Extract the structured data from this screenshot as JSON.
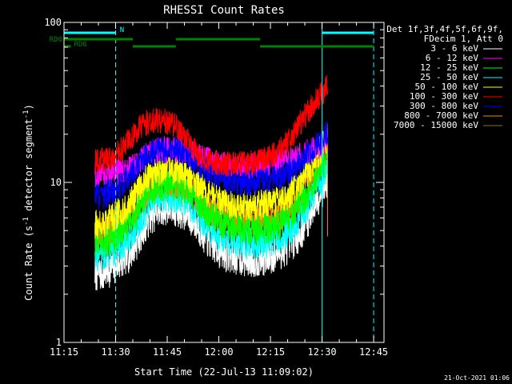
{
  "chart_data": {
    "type": "line",
    "title": "RHESSI Count Rates",
    "xlabel": "Start Time (22-Jul-13 11:09:02)",
    "ylabel_main": "Count Rate (s",
    "ylabel_sup1": "-1",
    "ylabel_mid": " detector segment",
    "ylabel_sup2": "-1",
    "ylabel_end": ")",
    "yscale": "log",
    "ylim": [
      1,
      100
    ],
    "xlim_minutes": [
      675.0,
      768.0
    ],
    "x_ticks": [
      {
        "m": 675,
        "label": "11:15"
      },
      {
        "m": 690,
        "label": "11:30"
      },
      {
        "m": 705,
        "label": "11:45"
      },
      {
        "m": 720,
        "label": "12:00"
      },
      {
        "m": 735,
        "label": "12:15"
      },
      {
        "m": 750,
        "label": "12:30"
      },
      {
        "m": 765,
        "label": "12:45"
      }
    ],
    "y_ticks": [
      {
        "v": 1,
        "label": "1"
      },
      {
        "v": 10,
        "label": "10"
      },
      {
        "v": 100,
        "label": "100"
      }
    ],
    "grid": false,
    "legend_title_1": "Det 1f,3f,4f,5f,6f,9f,",
    "legend_title_2": "FDecim 1, Att 0",
    "legend_position": "right",
    "curve_time_minutes": [
      684,
      686,
      688,
      690,
      692,
      694,
      696,
      698,
      700,
      702,
      704,
      706,
      708,
      710,
      712,
      714,
      716,
      718,
      720,
      722,
      724,
      726,
      728,
      730,
      732,
      734,
      736,
      738,
      740,
      742,
      744,
      746,
      748,
      750,
      751.6
    ],
    "series": [
      {
        "name": "3 - 6 keV",
        "color": "#ffffff",
        "values": [
          2.7,
          2.7,
          2.85,
          3.0,
          3.3,
          3.6,
          4.2,
          5.2,
          6.1,
          6.6,
          7.0,
          7.0,
          6.8,
          6.5,
          6.0,
          5.3,
          4.6,
          4.1,
          3.8,
          3.6,
          3.5,
          3.4,
          3.35,
          3.3,
          3.35,
          3.4,
          3.5,
          3.7,
          4.0,
          4.4,
          5.0,
          6.0,
          7.5,
          9.0,
          10.5
        ]
      },
      {
        "name": "6 - 12 keV",
        "color": "#ff00ff",
        "values": [
          11.0,
          11.0,
          11.2,
          11.5,
          11.8,
          12.2,
          13.0,
          14.0,
          15.2,
          15.7,
          16.0,
          16.0,
          15.8,
          15.6,
          15.2,
          14.6,
          14.0,
          13.5,
          13.2,
          13.0,
          12.9,
          12.8,
          12.8,
          12.8,
          12.9,
          13.0,
          13.1,
          13.3,
          13.7,
          14.2,
          14.8,
          15.5,
          16.2,
          17.0,
          18.0
        ]
      },
      {
        "name": "12 - 25 keV",
        "color": "#00ff00",
        "values": [
          4.2,
          4.2,
          4.4,
          4.6,
          5.0,
          5.5,
          6.3,
          7.6,
          8.7,
          9.3,
          9.7,
          9.7,
          9.5,
          9.1,
          8.5,
          7.6,
          6.7,
          6.1,
          5.7,
          5.5,
          5.3,
          5.2,
          5.1,
          5.05,
          5.1,
          5.2,
          5.3,
          5.6,
          6.0,
          6.6,
          7.5,
          8.8,
          10.5,
          12.5,
          15.0
        ]
      },
      {
        "name": "25 - 50 keV",
        "color": "#00ffff",
        "values": [
          3.5,
          3.5,
          3.7,
          3.9,
          4.2,
          4.6,
          5.3,
          6.4,
          7.4,
          7.9,
          8.3,
          8.3,
          8.1,
          7.8,
          7.2,
          6.4,
          5.6,
          5.1,
          4.7,
          4.5,
          4.4,
          4.3,
          4.2,
          4.15,
          4.2,
          4.3,
          4.4,
          4.6,
          5.0,
          5.5,
          6.2,
          7.4,
          9.0,
          10.8,
          13.0
        ]
      },
      {
        "name": "50 - 100 keV",
        "color": "#ffff00",
        "values": [
          5.5,
          5.5,
          5.8,
          6.2,
          6.7,
          7.4,
          8.4,
          9.8,
          11.0,
          11.6,
          12.0,
          12.0,
          11.7,
          11.3,
          10.7,
          9.7,
          8.7,
          8.1,
          7.7,
          7.5,
          7.3,
          7.2,
          7.1,
          7.1,
          7.2,
          7.3,
          7.5,
          7.8,
          8.3,
          9.1,
          10.2,
          11.8,
          14.0,
          16.5,
          19.0
        ]
      },
      {
        "name": "100 - 300 keV",
        "color": "#ff0000",
        "values": [
          13.5,
          13.7,
          14.2,
          15.0,
          16.5,
          18.5,
          21.0,
          23.0,
          24.0,
          24.5,
          24.3,
          23.5,
          22.0,
          19.5,
          17.0,
          15.0,
          14.0,
          13.5,
          13.2,
          13.0,
          13.0,
          13.0,
          13.1,
          13.3,
          13.7,
          14.2,
          15.0,
          16.3,
          18.0,
          20.5,
          24.0,
          28.0,
          32.0,
          36.0,
          40.0
        ]
      },
      {
        "name": "300 - 800 keV",
        "color": "#0000ff",
        "values": [
          8.2,
          8.2,
          8.5,
          9.0,
          9.8,
          10.8,
          12.2,
          13.8,
          15.0,
          15.6,
          16.0,
          16.0,
          15.7,
          15.2,
          14.4,
          13.2,
          12.0,
          11.2,
          10.7,
          10.4,
          10.2,
          10.1,
          10.0,
          10.0,
          10.1,
          10.2,
          10.4,
          10.8,
          11.4,
          12.3,
          13.5,
          15.0,
          16.8,
          18.5,
          20.0
        ]
      },
      {
        "name": "800 - 7000 keV",
        "color": "#ff8000",
        "values": [
          4.8,
          4.8,
          5.0,
          5.3,
          5.7,
          6.3,
          7.1,
          8.3,
          9.3,
          9.8,
          10.2,
          10.2,
          10.0,
          9.6,
          9.0,
          8.1,
          7.2,
          6.6,
          6.2,
          6.0,
          5.9,
          5.8,
          5.7,
          5.7,
          5.8,
          5.9,
          6.0,
          6.3,
          6.8,
          7.5,
          8.5,
          10.0,
          12.0,
          14.5,
          17.0
        ]
      },
      {
        "name": "7000 - 15000 keV",
        "color": "#808000",
        "values": []
      }
    ],
    "attenuator_bars": [
      {
        "label": "N",
        "label_at": 690.0,
        "color": "#00ffff",
        "row": 0,
        "start": 675.0,
        "end": 690.0
      },
      {
        "color": "#00ffff",
        "row": 0,
        "start": 750.0,
        "end": 765.0
      },
      {
        "label": "RD0",
        "color": "#008000",
        "row": 1,
        "start": 675.0,
        "end": 695.0
      },
      {
        "color": "#008000",
        "row": 1,
        "start": 707.5,
        "end": 732.0
      },
      {
        "label": "RD6",
        "color": "#008000",
        "row": 2,
        "start": 675.0,
        "end": 677.0
      },
      {
        "color": "#008000",
        "row": 2,
        "start": 695.0,
        "end": 707.5
      },
      {
        "color": "#008000",
        "row": 2,
        "start": 732.0,
        "end": 765.0
      }
    ],
    "vlines": [
      {
        "m": 675.0,
        "style": "solid"
      },
      {
        "m": 690.0,
        "style": "dashed"
      },
      {
        "m": 750.0,
        "style": "solid"
      },
      {
        "m": 765.0,
        "style": "dashed"
      }
    ]
  },
  "footer": {
    "timestamp": "21-Oct-2021 01:06"
  }
}
